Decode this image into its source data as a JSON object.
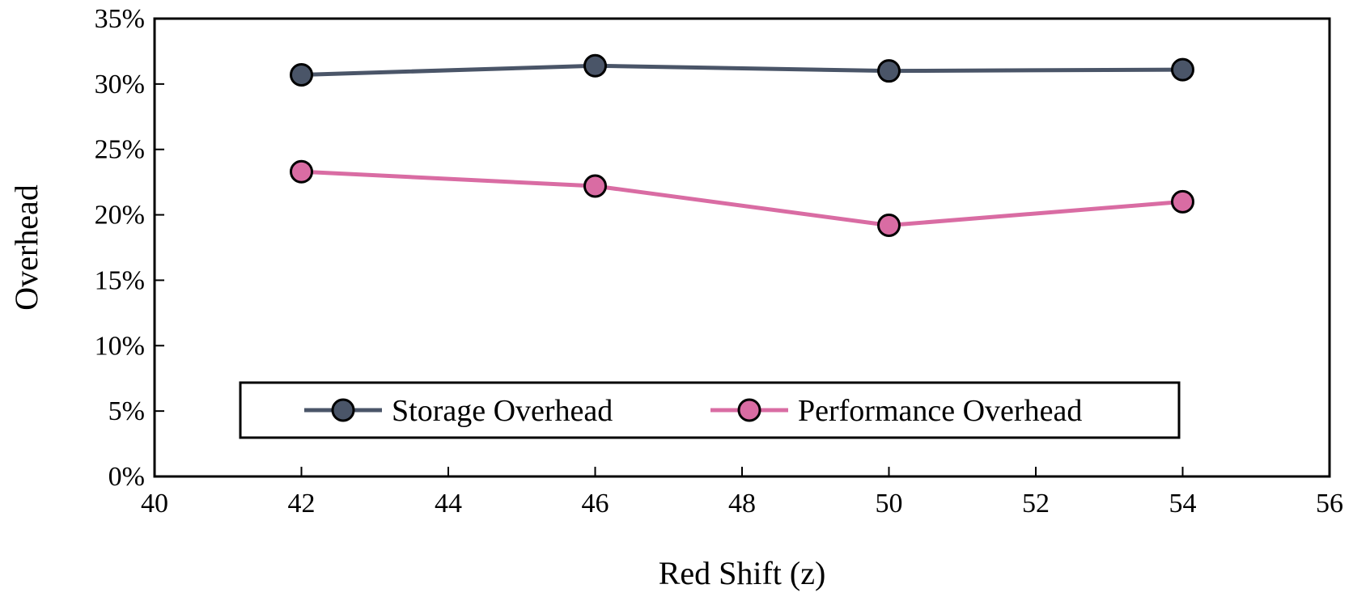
{
  "chart_data": {
    "type": "line",
    "xlabel": "Red Shift (z)",
    "ylabel": "Overhead",
    "xlim": [
      40,
      56
    ],
    "ylim": [
      0,
      35
    ],
    "x_ticks": [
      "40",
      "42",
      "44",
      "46",
      "48",
      "50",
      "52",
      "54",
      "56"
    ],
    "y_ticks": [
      "0%",
      "5%",
      "10%",
      "15%",
      "20%",
      "25%",
      "30%",
      "35%"
    ],
    "grid": false,
    "legend_position": "bottom-center",
    "x": [
      42,
      46,
      50,
      54
    ],
    "series": [
      {
        "name": "Storage Overhead",
        "color": "#4a5568",
        "values": [
          30.7,
          31.4,
          31.0,
          31.1
        ]
      },
      {
        "name": "Performance Overhead",
        "color": "#d96ca3",
        "values": [
          23.3,
          22.2,
          19.2,
          21.0
        ]
      }
    ]
  }
}
